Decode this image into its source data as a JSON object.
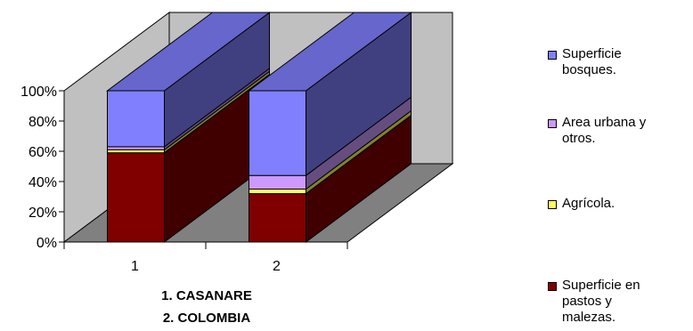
{
  "chart_data": {
    "type": "bar",
    "stacked": true,
    "three_d": true,
    "categories": [
      "1",
      "2"
    ],
    "category_names": [
      "1. CASANARE",
      "2. COLOMBIA"
    ],
    "ylim": [
      0,
      100
    ],
    "y_ticks": [
      "0%",
      "20%",
      "40%",
      "60%",
      "80%",
      "100%"
    ],
    "series": [
      {
        "name": "Superficie en\npastos y\nmalezas.",
        "color": "#800000",
        "values": [
          59,
          32
        ]
      },
      {
        "name": "Agrícola.",
        "color": "#ffff66",
        "values": [
          2,
          3
        ]
      },
      {
        "name": "Area urbana y\notros.",
        "color": "#cc99ff",
        "values": [
          2,
          9
        ]
      },
      {
        "name": "Superficie\nbosques.",
        "color": "#8080ff",
        "values": [
          37,
          56
        ]
      }
    ],
    "legend_position": "right",
    "legend_order": [
      3,
      2,
      1,
      0
    ],
    "grid": false
  }
}
